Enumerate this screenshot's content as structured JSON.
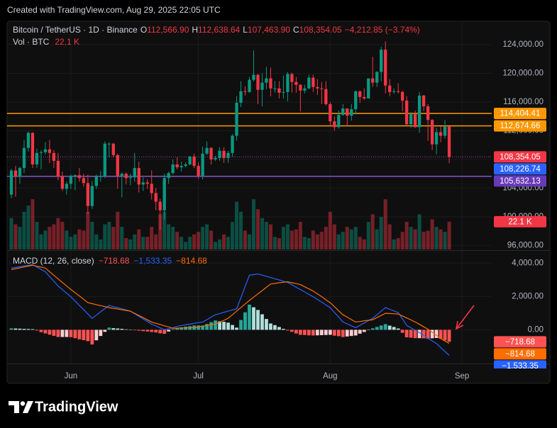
{
  "header": {
    "created": "Created with TradingView.com, Aug 29, 2025 22:05 UTC"
  },
  "footer": {
    "brand": "TradingView"
  },
  "chart_data": {
    "type": "candlestick",
    "title": "Bitcoin / TetherUS · 1D · Binance",
    "legend": {
      "open_label": "O",
      "open": "112,566.90",
      "high_label": "H",
      "high": "112,638.64",
      "low_label": "L",
      "low": "107,463.90",
      "close_label": "C",
      "close": "108,354.05",
      "change": "−4,212.85 (−3.74%)"
    },
    "up_color": "#089981",
    "down_color": "#f23645",
    "grid": true,
    "xlim": [
      "2025-05-17",
      "2025-09-08"
    ],
    "xticks": [
      {
        "value": "2025-06-01",
        "label": "Jun"
      },
      {
        "value": "2025-07-01",
        "label": "Jul"
      },
      {
        "value": "2025-08-01",
        "label": "Aug"
      },
      {
        "value": "2025-09-01",
        "label": "Sep"
      }
    ],
    "ylim": [
      95450,
      127260
    ],
    "yticks": [
      {
        "value": 96000,
        "label": "96,000.00"
      },
      {
        "value": 100000,
        "label": "100,000.00"
      },
      {
        "value": 104000,
        "label": "104,000.00"
      },
      {
        "value": 108000,
        "label": "108,000.00"
      },
      {
        "value": 112000,
        "label": "112,000.00"
      },
      {
        "value": 116000,
        "label": "116,000.00"
      },
      {
        "value": 120000,
        "label": "120,000.00"
      },
      {
        "value": 124000,
        "label": "124,000.00"
      }
    ],
    "x": [
      "2025-05-18",
      "2025-05-19",
      "2025-05-20",
      "2025-05-21",
      "2025-05-22",
      "2025-05-23",
      "2025-05-24",
      "2025-05-25",
      "2025-05-26",
      "2025-05-27",
      "2025-05-28",
      "2025-05-29",
      "2025-05-30",
      "2025-05-31",
      "2025-06-01",
      "2025-06-02",
      "2025-06-03",
      "2025-06-04",
      "2025-06-05",
      "2025-06-06",
      "2025-06-07",
      "2025-06-08",
      "2025-06-09",
      "2025-06-10",
      "2025-06-11",
      "2025-06-12",
      "2025-06-13",
      "2025-06-14",
      "2025-06-15",
      "2025-06-16",
      "2025-06-17",
      "2025-06-18",
      "2025-06-19",
      "2025-06-20",
      "2025-06-21",
      "2025-06-22",
      "2025-06-23",
      "2025-06-24",
      "2025-06-25",
      "2025-06-26",
      "2025-06-27",
      "2025-06-28",
      "2025-06-29",
      "2025-06-30",
      "2025-07-01",
      "2025-07-02",
      "2025-07-03",
      "2025-07-04",
      "2025-07-05",
      "2025-07-06",
      "2025-07-07",
      "2025-07-08",
      "2025-07-09",
      "2025-07-10",
      "2025-07-11",
      "2025-07-12",
      "2025-07-13",
      "2025-07-14",
      "2025-07-15",
      "2025-07-16",
      "2025-07-17",
      "2025-07-18",
      "2025-07-19",
      "2025-07-20",
      "2025-07-21",
      "2025-07-22",
      "2025-07-23",
      "2025-07-24",
      "2025-07-25",
      "2025-07-26",
      "2025-07-27",
      "2025-07-28",
      "2025-07-29",
      "2025-07-30",
      "2025-07-31",
      "2025-08-01",
      "2025-08-02",
      "2025-08-03",
      "2025-08-04",
      "2025-08-05",
      "2025-08-06",
      "2025-08-07",
      "2025-08-08",
      "2025-08-09",
      "2025-08-10",
      "2025-08-11",
      "2025-08-12",
      "2025-08-13",
      "2025-08-14",
      "2025-08-15",
      "2025-08-16",
      "2025-08-17",
      "2025-08-18",
      "2025-08-19",
      "2025-08-20",
      "2025-08-21",
      "2025-08-22",
      "2025-08-23",
      "2025-08-24",
      "2025-08-25",
      "2025-08-26",
      "2025-08-27",
      "2025-08-28",
      "2025-08-29"
    ],
    "ohlc": [
      [
        103100,
        106700,
        102600,
        106450
      ],
      [
        106450,
        107100,
        102800,
        105600
      ],
      [
        105600,
        107000,
        104600,
        106800
      ],
      [
        106800,
        110700,
        106100,
        109600
      ],
      [
        109600,
        111900,
        109100,
        111700
      ],
      [
        111700,
        111800,
        106800,
        107300
      ],
      [
        107300,
        109500,
        106800,
        108900
      ],
      [
        108900,
        109300,
        106600,
        109000
      ],
      [
        109000,
        110400,
        108700,
        109400
      ],
      [
        109400,
        110700,
        107500,
        108900
      ],
      [
        108900,
        109300,
        106800,
        107800
      ],
      [
        107800,
        108900,
        105100,
        105600
      ],
      [
        105600,
        106300,
        103600,
        103900
      ],
      [
        103900,
        104900,
        103100,
        104600
      ],
      [
        104600,
        105900,
        103900,
        105700
      ],
      [
        105700,
        105900,
        103700,
        105800
      ],
      [
        105800,
        106800,
        104900,
        105400
      ],
      [
        105400,
        106000,
        104200,
        104700
      ],
      [
        104700,
        105900,
        100400,
        101500
      ],
      [
        101500,
        105000,
        101100,
        104300
      ],
      [
        104300,
        105900,
        103900,
        105600
      ],
      [
        105600,
        106400,
        104900,
        105700
      ],
      [
        105700,
        110500,
        105400,
        110200
      ],
      [
        110200,
        110400,
        108300,
        110200
      ],
      [
        110200,
        110300,
        108300,
        108600
      ],
      [
        108600,
        108800,
        103900,
        105700
      ],
      [
        105700,
        106200,
        102700,
        106000
      ],
      [
        106000,
        106200,
        104500,
        105400
      ],
      [
        105400,
        106000,
        104400,
        105500
      ],
      [
        105500,
        108900,
        104900,
        106800
      ],
      [
        106800,
        107700,
        103400,
        104500
      ],
      [
        104500,
        105500,
        103600,
        104800
      ],
      [
        104800,
        105200,
        103900,
        104600
      ],
      [
        104600,
        106500,
        102400,
        103300
      ],
      [
        103300,
        104000,
        100900,
        102100
      ],
      [
        102100,
        102500,
        98200,
        100900
      ],
      [
        100900,
        106000,
        99600,
        105400
      ],
      [
        105400,
        106300,
        104600,
        106100
      ],
      [
        106100,
        108000,
        105900,
        107300
      ],
      [
        107300,
        108300,
        106600,
        106900
      ],
      [
        106900,
        107700,
        106300,
        107100
      ],
      [
        107100,
        107600,
        106900,
        107300
      ],
      [
        107300,
        108500,
        107200,
        108400
      ],
      [
        108400,
        108800,
        106800,
        107100
      ],
      [
        107100,
        107600,
        105300,
        105700
      ],
      [
        105700,
        109800,
        105200,
        108800
      ],
      [
        108800,
        110500,
        108600,
        109600
      ],
      [
        109600,
        109700,
        107300,
        108000
      ],
      [
        108000,
        108500,
        107800,
        108200
      ],
      [
        108200,
        109700,
        107800,
        109200
      ],
      [
        109200,
        109700,
        107500,
        108200
      ],
      [
        108200,
        109200,
        107500,
        108900
      ],
      [
        108900,
        111500,
        108400,
        111300
      ],
      [
        111300,
        116800,
        110600,
        115900
      ],
      [
        115900,
        118900,
        115300,
        117500
      ],
      [
        117500,
        118200,
        116900,
        117400
      ],
      [
        117400,
        119500,
        117300,
        119100
      ],
      [
        119100,
        123200,
        118900,
        119800
      ],
      [
        119800,
        119900,
        115700,
        117700
      ],
      [
        117700,
        120000,
        115400,
        118700
      ],
      [
        118700,
        120900,
        117800,
        119300
      ],
      [
        119300,
        120800,
        116800,
        117900
      ],
      [
        117900,
        118900,
        117300,
        117900
      ],
      [
        117900,
        118900,
        116500,
        117300
      ],
      [
        117300,
        119700,
        116500,
        117400
      ],
      [
        117400,
        120200,
        116100,
        119900
      ],
      [
        119900,
        120100,
        117300,
        118800
      ],
      [
        118800,
        119500,
        117300,
        118400
      ],
      [
        118400,
        118500,
        114700,
        117600
      ],
      [
        117600,
        118400,
        117200,
        117900
      ],
      [
        117900,
        119800,
        117800,
        119400
      ],
      [
        119400,
        119800,
        117400,
        118100
      ],
      [
        118100,
        119200,
        117000,
        117900
      ],
      [
        117900,
        118800,
        115700,
        117800
      ],
      [
        117800,
        118900,
        115500,
        115700
      ],
      [
        115700,
        116000,
        112700,
        113300
      ],
      [
        113300,
        114000,
        112000,
        112500
      ],
      [
        112500,
        114800,
        112300,
        114200
      ],
      [
        114200,
        115700,
        114100,
        115100
      ],
      [
        115100,
        115100,
        112700,
        114100
      ],
      [
        114100,
        115700,
        113400,
        115000
      ],
      [
        115000,
        117600,
        114300,
        117500
      ],
      [
        117500,
        117600,
        115900,
        116700
      ],
      [
        116700,
        117900,
        116300,
        116500
      ],
      [
        116500,
        119300,
        116500,
        119300
      ],
      [
        119300,
        122300,
        118100,
        118700
      ],
      [
        118700,
        120300,
        118100,
        120200
      ],
      [
        120200,
        123700,
        118900,
        123300
      ],
      [
        123300,
        124450,
        117200,
        118300
      ],
      [
        118300,
        119200,
        116800,
        117400
      ],
      [
        117400,
        117900,
        117200,
        117500
      ],
      [
        117500,
        118600,
        117200,
        117400
      ],
      [
        117400,
        117600,
        114700,
        116200
      ],
      [
        116200,
        116800,
        112700,
        112900
      ],
      [
        112900,
        114600,
        112400,
        114300
      ],
      [
        114300,
        114800,
        112400,
        112500
      ],
      [
        112500,
        117400,
        111700,
        116900
      ],
      [
        116900,
        117000,
        114700,
        115400
      ],
      [
        115400,
        115700,
        110600,
        113500
      ],
      [
        113500,
        113600,
        109300,
        110100
      ],
      [
        110100,
        112400,
        108700,
        111800
      ],
      [
        111800,
        112600,
        110400,
        111300
      ],
      [
        111300,
        113500,
        110900,
        112566.9
      ],
      [
        112566.9,
        112638.64,
        107463.9,
        108354.05
      ]
    ],
    "levels": [
      {
        "value": 114404.41,
        "label": "114,404.41",
        "color": "#ff9800",
        "line_color": "#ff9800",
        "style": "solid"
      },
      {
        "value": 112674.66,
        "label": "112,674.66",
        "color": "#ff9800",
        "line_color": "#ff9800",
        "style": "solid"
      },
      {
        "value": 108354.05,
        "label": "108,354.05",
        "color": "#f23645",
        "line_color": "#ab47bc",
        "style": "dotted"
      },
      {
        "value": 108226.74,
        "label": "108,226.74",
        "color": "#2962ff",
        "line_color": "#2962ff",
        "style": "none"
      },
      {
        "value": 105632.13,
        "label": "105,632.13",
        "color": "#673ab7",
        "line_color": "#7e57c2",
        "style": "solid"
      }
    ],
    "volume": {
      "title": "Vol · BTC",
      "last": "22.1 K",
      "values": [
        25,
        20,
        18,
        30,
        35,
        40,
        22,
        12,
        15,
        18,
        20,
        25,
        22,
        15,
        10,
        12,
        16,
        15,
        30,
        22,
        12,
        8,
        20,
        22,
        18,
        30,
        18,
        9,
        8,
        12,
        16,
        10,
        10,
        18,
        12,
        28,
        30,
        20,
        18,
        14,
        10,
        6,
        10,
        12,
        14,
        18,
        20,
        15,
        6,
        8,
        12,
        10,
        22,
        38,
        30,
        15,
        12,
        40,
        32,
        25,
        22,
        20,
        10,
        9,
        18,
        20,
        15,
        16,
        22,
        10,
        9,
        15,
        12,
        14,
        18,
        30,
        20,
        12,
        14,
        18,
        16,
        18,
        10,
        8,
        22,
        28,
        16,
        26,
        40,
        20,
        8,
        9,
        14,
        22,
        18,
        16,
        28,
        14,
        15,
        24,
        18,
        16,
        14,
        22.1
      ]
    },
    "macd": {
      "title": "MACD (12, 26, close)",
      "ylim": [
        -2020,
        4690
      ],
      "yticks": [
        {
          "value": 0,
          "label": "0.00"
        },
        {
          "value": 2000,
          "label": "2,000.00"
        },
        {
          "value": 4000,
          "label": "4,000.00"
        }
      ],
      "histogram": {
        "last": "−718.68",
        "colors": [
          "#26a69a",
          "#b2dfdb",
          "#ff5252",
          "#ffcdd2"
        ],
        "values": [
          90,
          80,
          70,
          60,
          50,
          40,
          -40,
          -140,
          -220,
          -290,
          -360,
          -430,
          -430,
          -430,
          -440,
          -500,
          -570,
          -620,
          -680,
          -880,
          -630,
          -370,
          -120,
          130,
          100,
          80,
          60,
          30,
          0,
          -30,
          -50,
          -80,
          -100,
          -130,
          -160,
          -210,
          -240,
          -100,
          40,
          100,
          150,
          190,
          220,
          260,
          260,
          260,
          350,
          460,
          560,
          510,
          480,
          430,
          290,
          130,
          590,
          1050,
          1510,
          1350,
          1190,
          930,
          650,
          380,
          280,
          170,
          60,
          -40,
          -120,
          -220,
          -300,
          -310,
          -330,
          -340,
          -330,
          -320,
          -310,
          -300,
          -350,
          -380,
          -430,
          -400,
          -370,
          -340,
          -230,
          -130,
          -20,
          90,
          170,
          260,
          340,
          250,
          170,
          80,
          -180,
          -450,
          -470,
          -500,
          -500,
          -510,
          -540,
          -510,
          -490,
          -540,
          -630,
          -718.68
        ]
      },
      "macd": {
        "last": "−1,533.35",
        "color": "#2962ff",
        "values": [
          3700,
          3740,
          3780,
          3830,
          3870,
          3910,
          3770,
          3620,
          3480,
          3190,
          2910,
          2620,
          2410,
          2190,
          1980,
          1720,
          1460,
          1210,
          950,
          690,
          880,
          1080,
          1270,
          1460,
          1390,
          1330,
          1260,
          1190,
          1120,
          960,
          810,
          650,
          500,
          340,
          230,
          110,
          0,
          70,
          130,
          200,
          260,
          300,
          340,
          390,
          430,
          470,
          610,
          760,
          900,
          970,
          1050,
          1120,
          1190,
          1250,
          1920,
          2600,
          3270,
          3310,
          3350,
          3280,
          3200,
          3130,
          3060,
          2990,
          2910,
          2840,
          2700,
          2550,
          2410,
          2270,
          2120,
          1980,
          1820,
          1660,
          1490,
          1330,
          1040,
          760,
          470,
          360,
          240,
          130,
          270,
          410,
          550,
          690,
          900,
          1120,
          1330,
          1230,
          1130,
          1030,
          650,
          260,
          120,
          -30,
          -170,
          -330,
          -500,
          -660,
          -820,
          -1060,
          -1300,
          -1533.35
        ]
      },
      "signal": {
        "last": "−814.68",
        "color": "#ff6d00",
        "values": [
          3610,
          3660,
          3710,
          3770,
          3820,
          3870,
          3810,
          3760,
          3700,
          3480,
          3270,
          3050,
          2840,
          2620,
          2420,
          2220,
          2030,
          1830,
          1630,
          1570,
          1510,
          1450,
          1390,
          1330,
          1290,
          1250,
          1200,
          1160,
          1120,
          990,
          860,
          730,
          600,
          470,
          390,
          320,
          240,
          170,
          90,
          100,
          110,
          110,
          120,
          130,
          170,
          210,
          260,
          300,
          340,
          460,
          570,
          690,
          900,
          1120,
          1330,
          1550,
          1760,
          1960,
          2160,
          2350,
          2550,
          2750,
          2780,
          2820,
          2850,
          2880,
          2820,
          2770,
          2710,
          2580,
          2450,
          2320,
          2150,
          1980,
          1800,
          1630,
          1390,
          1140,
          900,
          760,
          610,
          470,
          500,
          540,
          570,
          600,
          730,
          860,
          990,
          980,
          960,
          950,
          830,
          710,
          590,
          470,
          330,
          180,
          40,
          -150,
          -330,
          -520,
          -670,
          -814.68
        ]
      }
    }
  }
}
